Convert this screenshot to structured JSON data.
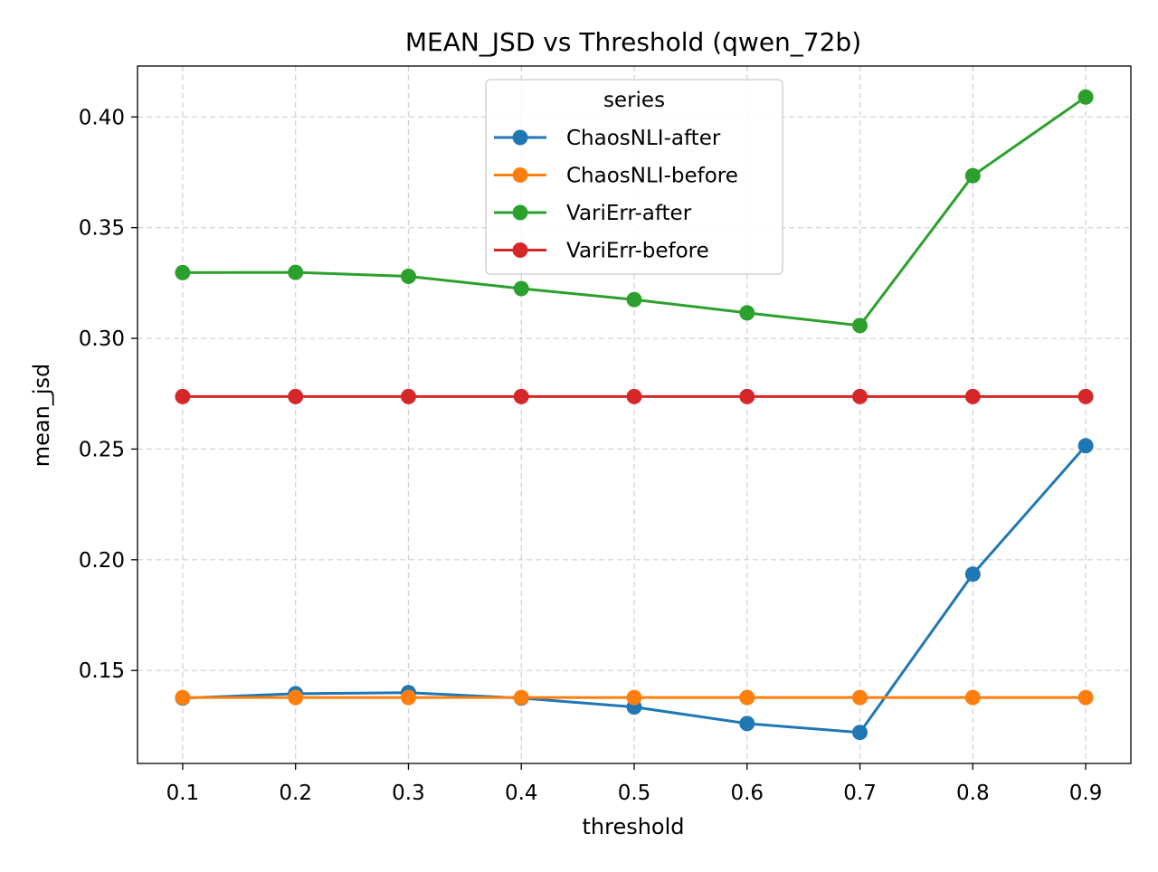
{
  "chart_data": {
    "type": "line",
    "title": "MEAN_JSD vs Threshold (qwen_72b)",
    "xlabel": "threshold",
    "ylabel": "mean_jsd",
    "x": [
      0.1,
      0.2,
      0.3,
      0.4,
      0.5,
      0.6,
      0.7,
      0.8,
      0.9
    ],
    "x_tick_labels": [
      "0.1",
      "0.2",
      "0.3",
      "0.4",
      "0.5",
      "0.6",
      "0.7",
      "0.8",
      "0.9"
    ],
    "y_ticks": [
      0.15,
      0.2,
      0.25,
      0.3,
      0.35,
      0.4
    ],
    "y_tick_labels": [
      "0.15",
      "0.20",
      "0.25",
      "0.30",
      "0.35",
      "0.40"
    ],
    "xlim": [
      0.06,
      0.94
    ],
    "ylim": [
      0.108,
      0.423
    ],
    "grid": true,
    "legend": {
      "title": "series",
      "placement": "upper-center"
    },
    "series": [
      {
        "name": "ChaosNLI-after",
        "color": "#1f77b4",
        "values": [
          0.1375,
          0.1395,
          0.14,
          0.1375,
          0.1335,
          0.126,
          0.122,
          0.1935,
          0.2515
        ]
      },
      {
        "name": "ChaosNLI-before",
        "color": "#ff7f0e",
        "values": [
          0.1378,
          0.1378,
          0.1378,
          0.1378,
          0.1378,
          0.1378,
          0.1378,
          0.1378,
          0.1378
        ]
      },
      {
        "name": "VariErr-after",
        "color": "#2ca02c",
        "values": [
          0.3297,
          0.3298,
          0.328,
          0.3225,
          0.3175,
          0.3115,
          0.3058,
          0.3735,
          0.409
        ]
      },
      {
        "name": "VariErr-before",
        "color": "#d62728",
        "values": [
          0.2737,
          0.2737,
          0.2737,
          0.2737,
          0.2737,
          0.2737,
          0.2737,
          0.2737,
          0.2737
        ]
      }
    ]
  }
}
